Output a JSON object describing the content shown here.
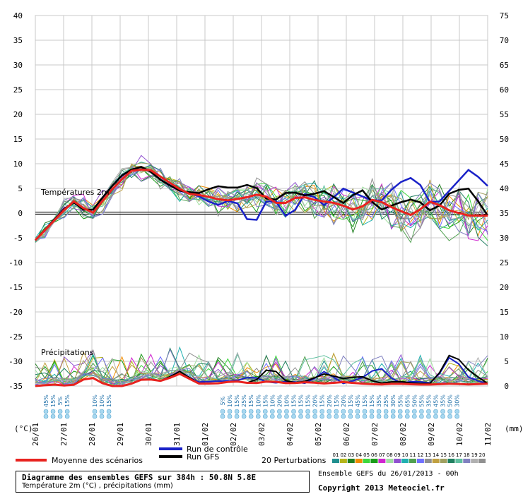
{
  "chart_data": {
    "type": "line",
    "x": [
      "26/01",
      "27/01",
      "28/01",
      "29/01",
      "30/01",
      "31/01",
      "01/02",
      "02/02",
      "03/02",
      "04/02",
      "05/02",
      "06/02",
      "07/02",
      "08/02",
      "09/02",
      "10/02",
      "11/02"
    ],
    "temperature": {
      "label": "Températures 2m",
      "ylim": [
        -35,
        40
      ],
      "yticks": [
        40,
        35,
        30,
        25,
        20,
        15,
        10,
        5,
        0,
        -5,
        -10,
        -15,
        -20,
        -25,
        -30,
        -35
      ],
      "mean": [
        -5.5,
        -1.5,
        2.5,
        -0.2,
        4.5,
        8.5,
        9.0,
        6.5,
        4.0,
        3.5,
        2.5,
        3.0,
        4.0,
        1.5,
        3.5,
        2.5,
        2.0,
        0.5,
        3.0,
        1.0,
        -0.5,
        2.5,
        0.5,
        -0.5,
        -0.5
      ],
      "control": [
        -5.5,
        -1.5,
        2.5,
        -0.2,
        4.5,
        8.5,
        9.5,
        6.5,
        4.5,
        3.5,
        1.5,
        3.0,
        -3.0,
        4.0,
        -1.5,
        4.5,
        1.5,
        5.0,
        3.5,
        2.0,
        6.0,
        7.5,
        1.0,
        5.0,
        9.0,
        5.5
      ],
      "gfs": [
        -5.5,
        -1.5,
        2.5,
        -0.2,
        4.5,
        8.5,
        9.5,
        6.5,
        4.5,
        4.0,
        5.5,
        5.0,
        6.0,
        2.0,
        4.5,
        3.5,
        4.5,
        2.0,
        5.0,
        0.5,
        2.0,
        3.0,
        0.0,
        4.5,
        5.0,
        -0.5
      ]
    },
    "precipitation": {
      "label": "Précipitations",
      "right_ylim": [
        0,
        75
      ],
      "right_ticks": [
        75,
        70,
        65,
        60,
        55,
        50,
        45,
        40,
        35,
        30,
        25,
        20,
        15,
        10,
        5,
        0
      ],
      "mean": [
        0.0,
        0.3,
        0.0,
        2.0,
        0.0,
        0.0,
        1.5,
        1.0,
        2.5,
        0.5,
        0.5,
        1.0,
        0.5,
        1.0,
        0.5,
        0.8,
        0.5,
        0.8,
        0.5,
        0.3,
        0.5,
        0.3,
        0.3,
        0.5,
        0.3,
        0.5
      ],
      "gfs": [
        0.0,
        0.3,
        0.0,
        2.0,
        0.0,
        0.0,
        1.5,
        1.0,
        3.0,
        0.5,
        0.5,
        1.0,
        0.5,
        4.0,
        0.5,
        1.0,
        2.5,
        1.5,
        2.0,
        0.5,
        1.0,
        0.5,
        0.5,
        7.0,
        3.0,
        0.5
      ],
      "control": [
        0.0,
        0.3,
        0.0,
        2.0,
        0.0,
        0.0,
        1.5,
        1.0,
        2.5,
        0.8,
        1.0,
        1.0,
        2.0,
        0.5,
        1.0,
        0.5,
        3.0,
        0.5,
        1.5,
        4.0,
        0.5,
        1.0,
        0.5,
        6.5,
        1.5,
        0.5
      ]
    },
    "probability_labels": {
      "first_group": [
        "45%",
        "15%",
        "5%",
        "15%"
      ],
      "second_group": [
        "10%",
        "10%",
        "15%"
      ],
      "third_group": [
        "5%",
        "10%",
        "15%",
        "25%",
        "15%",
        "10%",
        "15%",
        "10%",
        "20%",
        "10%",
        "15%",
        "15%",
        "15%",
        "20%",
        "15%",
        "20%",
        "15%",
        "20%",
        "15%",
        "45%",
        "15%",
        "15%",
        "35%",
        "25%",
        "30%",
        "55%",
        "65%",
        "50%",
        "55%",
        "35%",
        "45%",
        "35%",
        "50%",
        "30%"
      ]
    },
    "left_unit": "(°C)",
    "right_unit": "(mm)",
    "perturbation_ids": [
      "01",
      "02",
      "03",
      "04",
      "05",
      "06",
      "07",
      "08",
      "09",
      "10",
      "11",
      "12",
      "13",
      "14",
      "15",
      "16",
      "17",
      "18",
      "19",
      "20"
    ]
  },
  "legend": {
    "mean": "Moyenne des scénarios",
    "control": "Run de contrôle",
    "gfs": "Run GFS",
    "perturbations": "20 Perturbations"
  },
  "colors": {
    "mean": "#e8231f",
    "control": "#1a22c8",
    "gfs": "#000000",
    "grid": "#bdbdbd",
    "perturbations": [
      "#1f8f8f",
      "#b5b51a",
      "#1f7f1f",
      "#f08c00",
      "#3cd83c",
      "#1a9c1a",
      "#d026d0",
      "#a0e0a0",
      "#9050d0",
      "#20b0b0",
      "#50a050",
      "#7070ff",
      "#909090",
      "#c0a040",
      "#a0a060",
      "#208060",
      "#60c0a0",
      "#8080c0",
      "#b0b0b0",
      "#909090"
    ]
  },
  "footer": {
    "title": "Diagramme des ensembles GEFS sur 384h : 50.8N 5.8E",
    "subtitle": "Température 2m (°C) , précipitations (mm)",
    "ensemble_info": "Ensemble GEFS du 26/01/2013 - 00h",
    "copyright": "Copyright 2013 Meteociel.fr"
  }
}
